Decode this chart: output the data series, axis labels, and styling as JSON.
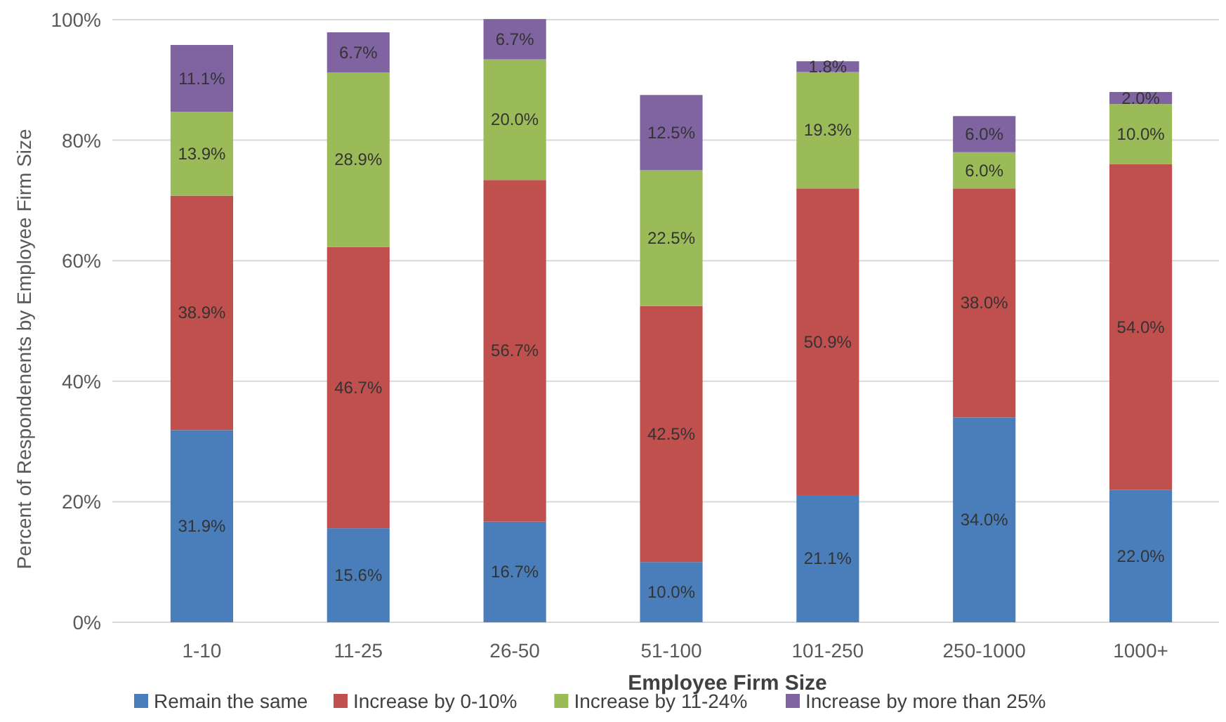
{
  "chart_data": {
    "type": "bar",
    "stacked": true,
    "xlabel": "Employee Firm Size",
    "ylabel": "Percent of Respondenents by Employee Firm Size",
    "categories": [
      "1-10",
      "11-25",
      "26-50",
      "51-100",
      "101-250",
      "250-1000",
      "1000+"
    ],
    "series": [
      {
        "name": "Remain the same",
        "color": "#4a7ebb",
        "values": [
          31.9,
          15.6,
          16.7,
          10.0,
          21.1,
          34.0,
          22.0
        ],
        "value_labels": [
          "31.9%",
          "15.6%",
          "16.7%",
          "10.0%",
          "21.1%",
          "34.0%",
          "22.0%"
        ]
      },
      {
        "name": "Increase by 0-10%",
        "color": "#c0504d",
        "values": [
          38.9,
          46.7,
          56.7,
          42.5,
          50.9,
          38.0,
          54.0
        ],
        "value_labels": [
          "38.9%",
          "46.7%",
          "56.7%",
          "42.5%",
          "50.9%",
          "38.0%",
          "54.0%"
        ]
      },
      {
        "name": "Increase by 11-24%",
        "color": "#9bbb59",
        "values": [
          13.9,
          28.9,
          20.0,
          22.5,
          19.3,
          6.0,
          10.0
        ],
        "value_labels": [
          "13.9%",
          "28.9%",
          "20.0%",
          "22.5%",
          "19.3%",
          "6.0%",
          "10.0%"
        ]
      },
      {
        "name": "Increase by more than 25%",
        "color": "#8064a2",
        "values": [
          11.1,
          6.7,
          6.7,
          12.5,
          1.8,
          6.0,
          2.0
        ],
        "value_labels": [
          "11.1%",
          "6.7%",
          "6.7%",
          "12.5%",
          "1.8%",
          "6.0%",
          "2.0%"
        ]
      }
    ],
    "ylim": [
      0,
      100
    ],
    "yticks": [
      {
        "value": 0,
        "label": "0%"
      },
      {
        "value": 20,
        "label": "20%"
      },
      {
        "value": 40,
        "label": "40%"
      },
      {
        "value": 60,
        "label": "60%"
      },
      {
        "value": 80,
        "label": "80%"
      },
      {
        "value": 100,
        "label": "100%"
      }
    ],
    "grid": "y",
    "legend": "bottom"
  }
}
